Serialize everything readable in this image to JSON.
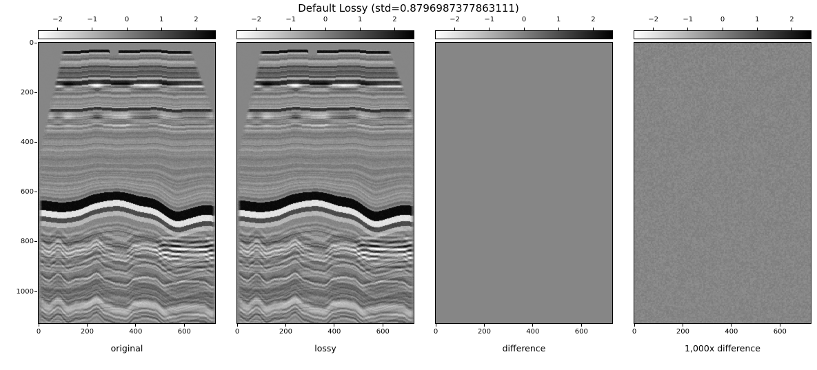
{
  "title": "Default Lossy (std=0.8796987377863111)",
  "chart_data": {
    "type": "heatmap",
    "title": "Default Lossy (std=0.8796987377863111)",
    "std": "0.8796987377863111",
    "panels": [
      {
        "label": "original",
        "content": "seismic-section"
      },
      {
        "label": "lossy",
        "content": "seismic-section"
      },
      {
        "label": "difference",
        "content": "uniform-zero"
      },
      {
        "label": "1,000x difference",
        "content": "low-amplitude-noise"
      }
    ],
    "colorbar": {
      "orientation": "horizontal-top",
      "colormap": "gray_r (white to black)",
      "ticks": [
        -2,
        -1,
        0,
        1,
        2
      ],
      "vmin": -2.57,
      "vmax": 2.57
    },
    "x_ticks": [
      0,
      200,
      400,
      600
    ],
    "y_ticks": [
      0,
      200,
      400,
      600,
      800,
      1000
    ],
    "x_range": [
      0,
      727
    ],
    "y_range": [
      0,
      1127
    ],
    "grid": false,
    "legend": "none"
  },
  "colors": {
    "background": "#ffffff",
    "image_base_gray": "#868686",
    "colorbar_start": "#ffffff",
    "colorbar_end": "#000000",
    "frame": "#000000",
    "text": "#000000"
  }
}
